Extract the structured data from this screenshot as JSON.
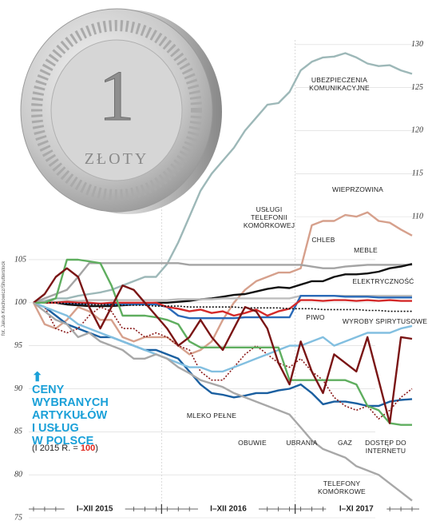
{
  "chart_data": {
    "type": "line",
    "title_lines": [
      "CENY",
      "WYBRANYCH",
      "ARTYKUŁÓW",
      "I USŁUG",
      "W POLSCE"
    ],
    "subtitle_prefix": "(I 2015 R. = ",
    "subtitle_base": "100",
    "subtitle_suffix": ")",
    "credit": "fot. Jakub Krechowicz/Shutterstock",
    "coin": {
      "denomination": "1",
      "label": "ZŁOTY"
    },
    "periods": [
      "I–XII 2015",
      "I–XII 2016",
      "I–XI 2017"
    ],
    "categories": [
      null,
      null,
      null,
      null,
      null,
      null,
      null,
      null,
      null,
      null,
      null,
      null,
      null,
      null,
      null,
      null,
      null,
      null,
      null,
      null,
      null,
      null,
      null,
      null,
      null,
      null,
      null,
      null,
      null,
      null,
      null,
      null,
      null,
      null,
      null
    ],
    "ylim": [
      75,
      131
    ],
    "yticks": [
      75,
      80,
      85,
      90,
      95,
      100,
      105,
      110,
      115,
      120,
      125,
      130
    ],
    "grid": true,
    "series": [
      {
        "name": "UBEZPIECZENIA KOMUNIKACYJNE",
        "color": "#9db8b8",
        "dash": false,
        "values": [
          100,
          100.2,
          100.5,
          100.5,
          100.8,
          101,
          101.2,
          101.5,
          102,
          102.5,
          103,
          103,
          104.5,
          107,
          110,
          113,
          115,
          116.5,
          118,
          120,
          121.5,
          123,
          123.2,
          124.5,
          127,
          128,
          128.5,
          128.6,
          129,
          128.5,
          127.8,
          127.5,
          127.6,
          127,
          126.6
        ]
      },
      {
        "name": "WIEPRZOWINA",
        "color": "#d6a08c",
        "dash": false,
        "values": [
          100,
          97.5,
          97,
          98,
          99.5,
          99,
          98,
          98,
          96,
          95.5,
          96,
          96,
          96,
          95,
          94,
          94.5,
          95.5,
          98,
          100,
          101.5,
          102.5,
          103,
          103.5,
          103.5,
          104,
          109,
          109.5,
          109.5,
          110.2,
          110,
          110.5,
          109.5,
          109.3,
          108.5,
          107.8
        ]
      },
      {
        "name": "USŁUGI TELEFONII KOMÓRKOWEJ",
        "color": "#a4a4a4",
        "dash": false,
        "values": [
          100,
          100.5,
          101,
          101.5,
          103,
          104.6,
          104.6,
          104.6,
          104.6,
          104.6,
          104.6,
          104.6,
          104.6,
          104.6,
          104.4,
          104.4,
          104.4,
          104.4,
          104.4,
          104.4,
          104.4,
          104.4,
          104.4,
          104.4,
          104.4,
          104.2,
          104,
          104,
          104.2,
          104.3,
          104.4,
          104.4,
          104.4,
          104.4,
          104.4
        ]
      },
      {
        "name": "CHLEB",
        "color": "#111111",
        "dash": false,
        "values": [
          100,
          100,
          100,
          99.8,
          99.7,
          99.6,
          99.6,
          99.6,
          99.7,
          99.8,
          99.9,
          100,
          100,
          100.1,
          100.2,
          100.4,
          100.5,
          100.7,
          100.9,
          101,
          101.3,
          101.6,
          101.8,
          101.7,
          102.1,
          102.5,
          102.5,
          103,
          103.3,
          103.3,
          103.4,
          103.6,
          104,
          104.2,
          104.5
        ]
      },
      {
        "name": "MEBLE",
        "color": "#bdbdbd",
        "dash": false,
        "values": [
          100,
          100.1,
          100.1,
          100.2,
          100.2,
          100.3,
          100.3,
          100.3,
          100.3,
          100.3,
          100.3,
          100.3,
          100.3,
          100.4,
          100.4,
          100.4,
          100.4,
          100.5,
          100.5,
          100.5,
          100.5,
          100.5,
          100.5,
          100.5,
          100.8,
          100.8,
          100.8,
          100.8,
          100.8,
          100.8,
          100.8,
          100.8,
          100.8,
          100.8,
          100.8
        ]
      },
      {
        "name": "ELEKTRYCZNOŚĆ",
        "color": "#2a6ab8",
        "dash": false,
        "values": [
          100,
          100,
          100,
          100,
          99.9,
          99.9,
          99.9,
          99.8,
          99.8,
          99.8,
          99.8,
          99.8,
          99.5,
          98.5,
          98.2,
          98.2,
          98.2,
          98.2,
          98.2,
          98.3,
          98.3,
          98.3,
          98.3,
          98.3,
          100.8,
          100.8,
          100.8,
          100.8,
          100.7,
          100.7,
          100.7,
          100.6,
          100.6,
          100.6,
          100.6
        ]
      },
      {
        "name": "PIWO",
        "color": "#d42a2a",
        "dash": false,
        "values": [
          100,
          100,
          100,
          100.1,
          100,
          100,
          99.9,
          100,
          100,
          100,
          100,
          100,
          99.5,
          99.3,
          99,
          99.2,
          98.8,
          99,
          98.5,
          98.8,
          99.2,
          98.5,
          99,
          99.3,
          100.3,
          100.3,
          100.2,
          100.3,
          100.3,
          100.2,
          100.3,
          100.2,
          100.3,
          100.2,
          100.2
        ]
      },
      {
        "name": "WYROBY SPIRYTUSOWE",
        "color": "#111111",
        "dash": true,
        "values": [
          100,
          100,
          100,
          99.9,
          99.9,
          99.8,
          99.8,
          99.8,
          99.7,
          99.7,
          99.7,
          99.6,
          99.6,
          99.6,
          99.5,
          99.5,
          99.5,
          99.5,
          99.5,
          99.4,
          99.4,
          99.4,
          99.4,
          99.3,
          99.3,
          99.3,
          99.2,
          99.2,
          99.2,
          99.2,
          99.1,
          99.1,
          99,
          99,
          99
        ]
      },
      {
        "name": "MLEKO PEŁNE",
        "color": "#1a5fa0",
        "dash": false,
        "values": [
          100,
          99.5,
          98.5,
          97.5,
          97,
          96.5,
          96,
          96,
          95.5,
          95,
          94.5,
          94.5,
          94,
          93.5,
          92,
          90.5,
          89.5,
          89.3,
          89,
          89.2,
          89.5,
          89.5,
          89.8,
          90,
          90.5,
          89.5,
          88.2,
          88.5,
          88.5,
          88.3,
          88,
          88,
          88.5,
          88.7,
          88.8
        ]
      },
      {
        "name": "OBUWIE",
        "color": "#8a1a1a",
        "dash": true,
        "values": [
          100,
          99.5,
          97,
          96.5,
          97,
          98.5,
          99.5,
          99,
          97,
          97,
          96,
          96.5,
          96,
          95,
          94.5,
          92,
          91,
          91,
          92.5,
          94,
          95,
          94,
          93,
          92.5,
          93.5,
          92,
          91,
          89,
          88,
          87.5,
          88,
          86.5,
          87.5,
          89,
          90
        ]
      },
      {
        "name": "UBRANIA",
        "color": "#82bfe0",
        "dash": false,
        "values": [
          100,
          99.5,
          99,
          98.5,
          97.5,
          97,
          96.5,
          96,
          95.5,
          95,
          94.5,
          94,
          93.5,
          93,
          92.5,
          92.5,
          92,
          92,
          92.5,
          93,
          93.5,
          94,
          94.5,
          95,
          95,
          95.5,
          96,
          95,
          95.5,
          96,
          96.5,
          96.5,
          96.5,
          97,
          97.3
        ]
      },
      {
        "name": "GAZ",
        "color": "#5fae5f",
        "dash": false,
        "values": [
          100,
          100,
          100.5,
          105,
          105,
          104.8,
          104.6,
          102,
          98.5,
          98.5,
          98.5,
          98.3,
          98,
          97.5,
          95.5,
          94.8,
          94.8,
          94.8,
          94.8,
          94.8,
          94.8,
          94.8,
          94.8,
          91,
          91,
          91,
          91,
          91,
          91,
          90.5,
          88,
          87.5,
          86,
          85.8,
          85.8
        ]
      },
      {
        "name": "DOSTĘP DO INTERNETU",
        "color": "#7a1515",
        "dash": false,
        "values": [
          100,
          101,
          103,
          104,
          103,
          99.5,
          97,
          99.5,
          102,
          101.5,
          100,
          98.5,
          97,
          95,
          96,
          98,
          96,
          94.5,
          97,
          99.5,
          99,
          97,
          93,
          90.5,
          95.5,
          92,
          89.5,
          94,
          93,
          92,
          96,
          91,
          86,
          96,
          95.8
        ]
      },
      {
        "name": "TELEFONY KOMÓRKOWE",
        "color": "#a8a8a8",
        "dash": false,
        "values": [
          100,
          99,
          98,
          97.5,
          96,
          96.5,
          95.5,
          95,
          94.5,
          93.5,
          93.5,
          94,
          93.5,
          92.5,
          91.8,
          91,
          90.6,
          90.2,
          89.5,
          89,
          88.5,
          88,
          87.5,
          87,
          85.5,
          84,
          83,
          82.5,
          82,
          81,
          80.5,
          80,
          79,
          78,
          77
        ]
      }
    ]
  }
}
